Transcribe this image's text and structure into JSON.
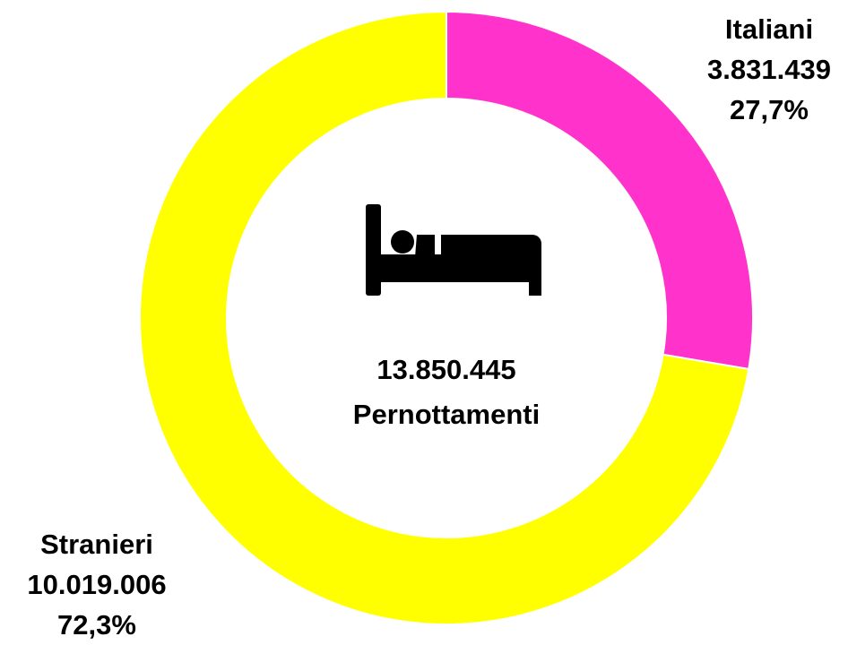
{
  "chart_data": {
    "type": "donut",
    "categories": [
      "Italiani",
      "Stranieri"
    ],
    "values": [
      3831439,
      10019006
    ],
    "value_labels": [
      "3.831.439",
      "10.019.006"
    ],
    "percents": [
      27.7,
      72.3
    ],
    "percent_labels": [
      "27,7%",
      "72,3%"
    ],
    "colors": [
      "#ff33cc",
      "#ffff00"
    ],
    "center_text": [
      "13.850.445",
      "Pernottamenti"
    ]
  }
}
